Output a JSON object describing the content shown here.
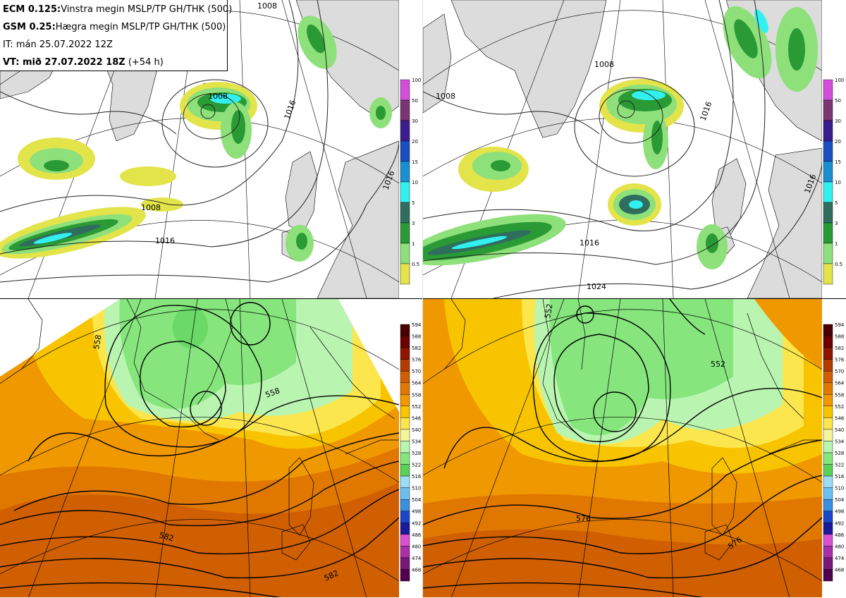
{
  "header": {
    "ecm_bold": "ECM 0.125:",
    "ecm_text": "Vinstra megin MSLP/TP GH/THK (500)",
    "gsm_bold": "GSM 0.25:",
    "gsm_text": "Hægra megin MSLP/TP GH/THK (500)",
    "it": "IT: mán 25.07.2022 12Z",
    "vt_bold": "VT: mið 27.07.2022 18Z",
    "vt_text": " (+54 h)"
  },
  "precip_colorbar": {
    "labels": [
      "100",
      "50",
      "30",
      "20",
      "15",
      "10",
      "5",
      "3",
      "1",
      "0.5"
    ],
    "colors": [
      "#d24fd9",
      "#7b3572",
      "#3a1f8c",
      "#1b4fc0",
      "#1a8fd0",
      "#33f0f0",
      "#2f6e5e",
      "#2a9a35",
      "#8ee07a",
      "#e3e34a"
    ]
  },
  "thk_colorbar": {
    "labels": [
      "594",
      "588",
      "582",
      "576",
      "570",
      "564",
      "558",
      "552",
      "546",
      "540",
      "534",
      "528",
      "522",
      "516",
      "510",
      "504",
      "498",
      "492",
      "486",
      "480",
      "474",
      "468"
    ],
    "colors": [
      "#4a0000",
      "#6b0000",
      "#8f1500",
      "#b33b00",
      "#cf5f00",
      "#e07800",
      "#f09800",
      "#f8c400",
      "#fbe64e",
      "#f4f49a",
      "#b9f5b0",
      "#86e57d",
      "#5ad05a",
      "#9bdcf7",
      "#6cc0f0",
      "#3c8ee0",
      "#1a46c8",
      "#1a1a9a",
      "#d850d0",
      "#a830a8",
      "#781878",
      "#500050"
    ]
  },
  "isobars_tl": [
    "1008",
    "1008",
    "1008",
    "1016",
    "1016",
    "1016"
  ],
  "isobars_tr": [
    "1008",
    "1008",
    "1016",
    "1016",
    "1016",
    "1024"
  ],
  "gh_bl": [
    "558",
    "558",
    "582",
    "582"
  ],
  "gh_br": [
    "552",
    "552",
    "576",
    "576"
  ]
}
